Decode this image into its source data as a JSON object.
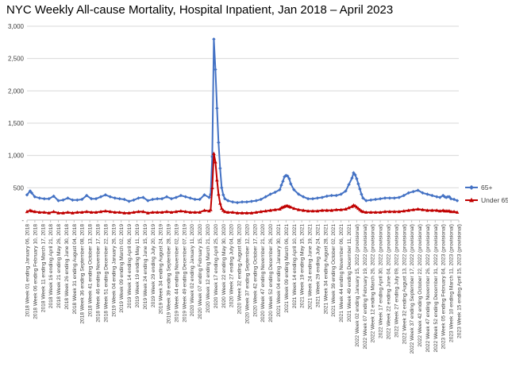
{
  "chart_data": {
    "type": "line",
    "title": "NYC Weekly All-cause Mortality, Hospital Inpatient, Jan 2018 – April 2023",
    "xlabel": "",
    "ylabel": "",
    "ylim": [
      0,
      3000
    ],
    "yticks": [
      0,
      500,
      1000,
      1500,
      2000,
      2500,
      3000
    ],
    "ytick_labels": [
      "-",
      "500",
      "1,000",
      "1,500",
      "2,000",
      "2,500",
      "3,000"
    ],
    "grid": "horizontal",
    "legend_position": "right",
    "x_tick_labels": [
      "2018 Week 01 ending January 06, 2018",
      "2018 Week 06 ending February 10, 2018",
      "2018 Week 11 ending March 17, 2018",
      "2018 Week 16 ending April 21, 2018",
      "2018 Week 21 ending May 26, 2018",
      "2018 Week 26 ending June 30, 2018",
      "2018 Week 31 ending August 04, 2018",
      "2018 Week 36 ending September 08, 2018",
      "2018 Week 41 ending October 13, 2018",
      "2018 Week 46 ending November 17, 2018",
      "2018 Week 51 ending December 22, 2018",
      "2019 Week 04 ending January 26, 2019",
      "2019 Week 09 ending March 02, 2019",
      "2019 Week 14 ending April 06, 2019",
      "2019 Week 19 ending May 11, 2019",
      "2019 Week 24 ending June 15, 2019",
      "2019 Week 29 ending July 20, 2019",
      "2019 Week 34 ending August 24, 2019",
      "2019 Week 39 ending September 28, 2019",
      "2019 Week 44 ending November 02, 2019",
      "2019 Week 49 ending December 07, 2019",
      "2020 Week 02 ending January 11, 2020",
      "2020 Week 07 ending February 15, 2020",
      "2020 Week 12 ending March 21, 2020",
      "2020 Week 17 ending April 25, 2020",
      "2020 Week 22 ending May 30, 2020",
      "2020 Week 27 ending July 04, 2020",
      "2020 Week 32 ending August 08, 2020",
      "2020 Week 37 ending September 12, 2020",
      "2020 Week 42 ending October 17, 2020",
      "2020 Week 47 ending November 21, 2020",
      "2020 Week 52 ending December 26, 2020",
      "2021 Week 04 ending January 30, 2021",
      "2021 Week 09 ending March 06, 2021",
      "2021 Week 14 ending April 10, 2021",
      "2021 Week 19 ending May 15, 2021",
      "2021 Week 24 ending June 19, 2021",
      "2021 Week 29 ending July 24, 2021",
      "2021 Week 34 ending August 28, 2021",
      "2021 Week 39 ending October 02, 2021",
      "2021 Week 44 ending November 06, 2021",
      "2021 Week 49 ending December 11, 2021",
      "2022 Week 02 ending January 15, 2022 (provisional)",
      "2022 Week 07 ending February 19, 2022 (provisional)",
      "2022 Week 12 ending March 26, 2022 (provisional)",
      "2022 Week 17 ending April 30, 2022 (provisional)",
      "2022 Week 22 ending June 04, 2022 (provisional)",
      "2022 Week 27 ending July 09, 2022 (provisional)",
      "2022 Week 32 ending August 13, 2022 (provisional)",
      "2022 Week 37 ending September 17, 2022 (provisional)",
      "2022 Week 42 ending October 22, 2022 (provisional)",
      "2022 Week 47 ending November 26, 2022 (provisional)",
      "2022 Week 52 ending December 31, 2022 (provisional)",
      "2023 Week 05 ending February 04, 2023 (provisional)",
      "2023 Week 10 ending March 11, 2023 (provisional)",
      "2023 Week 15 ending April 15, 2023 (provisional)"
    ],
    "series": [
      {
        "name": "65+",
        "color": "#4472C4",
        "marker": "diamond",
        "x": [
          0,
          2,
          3,
          5,
          8,
          11,
          14,
          17,
          20,
          23,
          26,
          29,
          32,
          35,
          38,
          41,
          44,
          47,
          50,
          53,
          56,
          59,
          62,
          65,
          68,
          71,
          74,
          77,
          80,
          83,
          86,
          89,
          92,
          95,
          98,
          101,
          104,
          107,
          110,
          113,
          116,
          117,
          118,
          119,
          120,
          121,
          122,
          123,
          124,
          125,
          126,
          128,
          131,
          134,
          137,
          140,
          143,
          146,
          149,
          152,
          155,
          158,
          161,
          162,
          163,
          164,
          165,
          166,
          167,
          168,
          170,
          173,
          176,
          179,
          182,
          185,
          188,
          191,
          194,
          197,
          200,
          203,
          205,
          207,
          208,
          209,
          210,
          211,
          212,
          213,
          214,
          216,
          219,
          222,
          225,
          228,
          231,
          234,
          237,
          240,
          243,
          246,
          249,
          252,
          255,
          258,
          261,
          263,
          265,
          266,
          267,
          268,
          269,
          270,
          272,
          274
        ],
        "values": [
          390,
          450,
          420,
          360,
          340,
          330,
          330,
          370,
          300,
          310,
          340,
          310,
          310,
          320,
          380,
          330,
          330,
          360,
          390,
          360,
          340,
          330,
          320,
          290,
          310,
          340,
          350,
          300,
          320,
          330,
          330,
          360,
          330,
          350,
          380,
          360,
          340,
          320,
          320,
          390,
          350,
          400,
          980,
          2800,
          2330,
          1730,
          1200,
          800,
          500,
          390,
          330,
          300,
          280,
          270,
          280,
          280,
          290,
          300,
          320,
          360,
          400,
          430,
          470,
          540,
          600,
          670,
          690,
          680,
          640,
          560,
          470,
          400,
          360,
          330,
          330,
          340,
          350,
          370,
          380,
          380,
          400,
          450,
          550,
          650,
          730,
          700,
          640,
          560,
          480,
          400,
          340,
          300,
          310,
          320,
          330,
          340,
          340,
          340,
          350,
          380,
          420,
          440,
          460,
          420,
          400,
          380,
          360,
          350,
          380,
          360,
          350,
          360,
          360,
          330,
          320,
          300
        ],
        "last_label": "65+"
      },
      {
        "name": "Under 65",
        "color": "#C00000",
        "marker": "triangle",
        "x": [
          0,
          2,
          3,
          5,
          8,
          11,
          14,
          17,
          20,
          23,
          26,
          29,
          32,
          35,
          38,
          41,
          44,
          47,
          50,
          53,
          56,
          59,
          62,
          65,
          68,
          71,
          74,
          77,
          80,
          83,
          86,
          89,
          92,
          95,
          98,
          101,
          104,
          107,
          110,
          113,
          116,
          117,
          118,
          119,
          120,
          121,
          122,
          123,
          124,
          125,
          126,
          128,
          131,
          134,
          137,
          140,
          143,
          146,
          149,
          152,
          155,
          158,
          161,
          162,
          163,
          164,
          165,
          166,
          167,
          168,
          170,
          173,
          176,
          179,
          182,
          185,
          188,
          191,
          194,
          197,
          200,
          203,
          205,
          207,
          208,
          209,
          210,
          211,
          212,
          213,
          214,
          216,
          219,
          222,
          225,
          228,
          231,
          234,
          237,
          240,
          243,
          246,
          249,
          252,
          255,
          258,
          261,
          263,
          265,
          266,
          267,
          268,
          269,
          270,
          272,
          274
        ],
        "values": [
          130,
          150,
          140,
          130,
          120,
          120,
          110,
          130,
          110,
          110,
          120,
          110,
          120,
          120,
          130,
          120,
          120,
          130,
          140,
          130,
          120,
          120,
          110,
          110,
          120,
          130,
          130,
          110,
          120,
          120,
          120,
          130,
          120,
          130,
          140,
          130,
          120,
          120,
          120,
          150,
          140,
          160,
          500,
          1030,
          900,
          620,
          400,
          260,
          180,
          150,
          130,
          120,
          120,
          110,
          110,
          110,
          110,
          120,
          130,
          140,
          150,
          160,
          170,
          190,
          200,
          210,
          220,
          220,
          210,
          200,
          180,
          160,
          150,
          140,
          140,
          140,
          150,
          150,
          150,
          160,
          160,
          170,
          190,
          210,
          230,
          220,
          200,
          180,
          160,
          140,
          130,
          120,
          120,
          120,
          120,
          130,
          130,
          130,
          130,
          140,
          150,
          160,
          170,
          160,
          150,
          150,
          150,
          140,
          150,
          140,
          140,
          140,
          140,
          130,
          130,
          120
        ]
      }
    ],
    "n_weeks": 276
  }
}
